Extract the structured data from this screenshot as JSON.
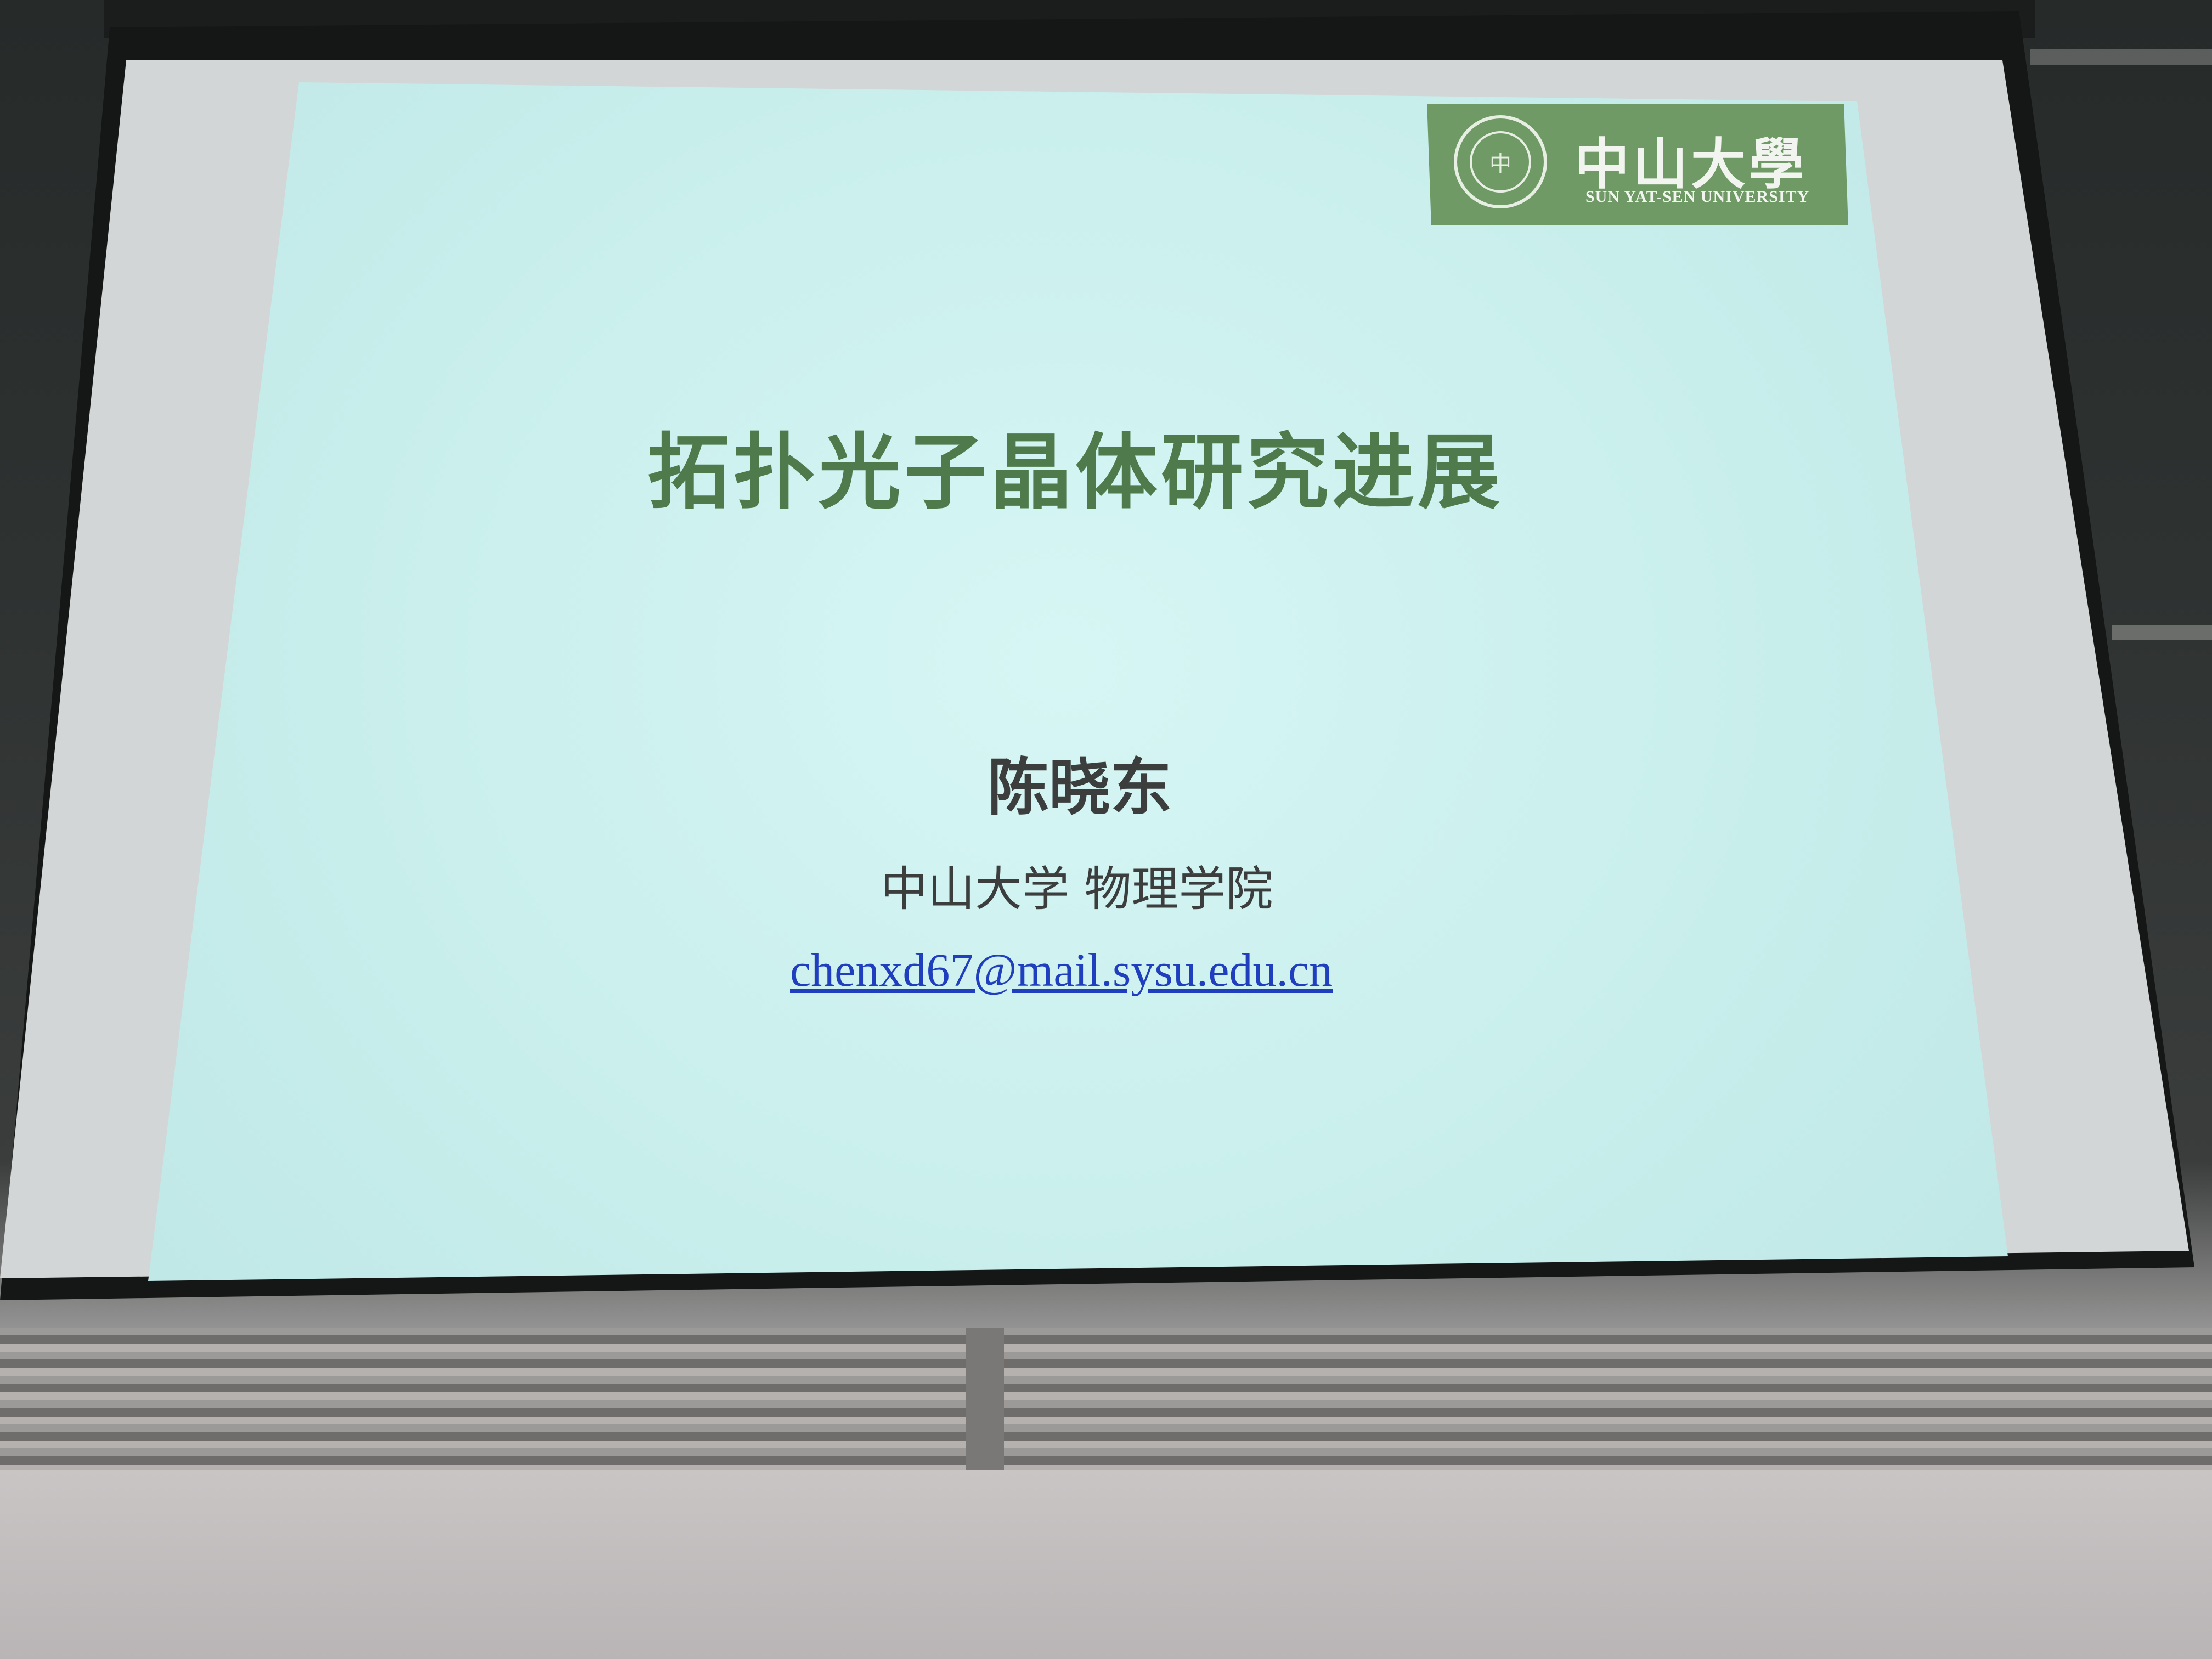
{
  "slide": {
    "logo": {
      "name_cn": "中山大學",
      "name_en": "SUN YAT-SEN UNIVERSITY",
      "seal_text": "中"
    },
    "title": "拓扑光子晶体研究进展",
    "author": "陈晓东",
    "affiliation": "中山大学 物理学院",
    "email": "chenxd67@mail.sysu.edu.cn"
  },
  "colors": {
    "slide_background": "#c8eeec",
    "title_green": "#4f7a4b",
    "logo_green": "#6f9a66",
    "email_blue": "#1f3fbf"
  }
}
